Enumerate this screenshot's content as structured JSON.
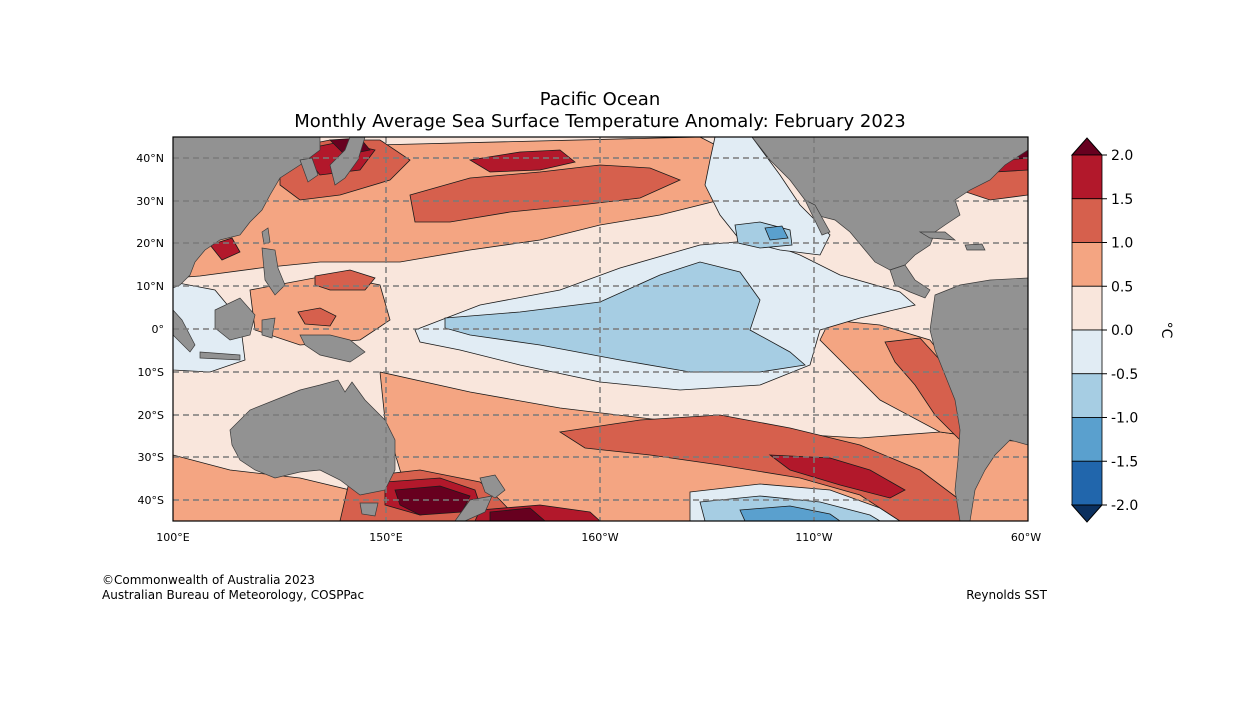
{
  "title": {
    "line1": "Pacific Ocean",
    "line2": "Monthly Average Sea Surface Temperature Anomaly: February 2023"
  },
  "map": {
    "lon_ticks": [
      "100°E",
      "150°E",
      "160°W",
      "110°W",
      "60°W"
    ],
    "lat_ticks": [
      "40°N",
      "30°N",
      "20°N",
      "10°N",
      "0°",
      "10°S",
      "20°S",
      "30°S",
      "40°S"
    ],
    "colors": {
      "land": "#929292",
      "grid": "#7a7a7a",
      "contour": "#1a1a1a"
    }
  },
  "colorbar": {
    "unit_label": "°C",
    "tick_labels": [
      "2.0",
      "1.5",
      "1.0",
      "0.5",
      "0.0",
      "-0.5",
      "-1.0",
      "-1.5",
      "-2.0"
    ],
    "bins": [
      {
        "range": "1.5 to 2.0",
        "color": "#b2182b"
      },
      {
        "range": "1.0 to 1.5",
        "color": "#d6604d"
      },
      {
        "range": "0.5 to 1.0",
        "color": "#f4a582"
      },
      {
        "range": "0.0 to 0.5",
        "color": "#f9e6dc"
      },
      {
        "range": "-0.5 to 0.0",
        "color": "#e1ecf4"
      },
      {
        "range": "-1.0 to -0.5",
        "color": "#a6cde3"
      },
      {
        "range": "-1.5 to -1.0",
        "color": "#5aa0ce"
      },
      {
        "range": "-2.0 to -1.5",
        "color": "#2166ac"
      }
    ],
    "over_color": "#67001f",
    "under_color": "#0b305f"
  },
  "credits": {
    "copyright": "©Commonwealth of Australia 2023",
    "agency": "Australian Bureau of Meteorology, COSPPac",
    "source": "Reynolds SST"
  }
}
